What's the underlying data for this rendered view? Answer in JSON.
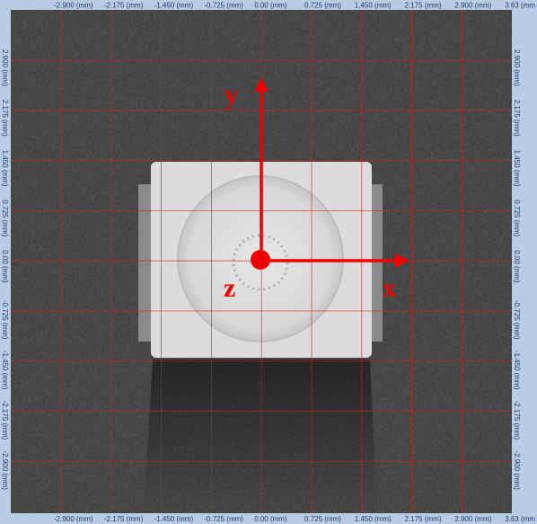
{
  "scale": {
    "x_labels": [
      "-2.900 (mm)",
      "-2.175 (mm)",
      "-1.450 (mm)",
      "-0.725 (mm)",
      "0.00 (mm)",
      "0.725 (mm)",
      "1.450 (mm)",
      "2.175 (mm)",
      "2.900 (mm)",
      "3.63 (mm"
    ],
    "y_labels": [
      "2.900 (mm)",
      "2.175 (mm)",
      "1.450 (mm)",
      "0.725 (mm)",
      "0.00 (mm)",
      "-0.725 (mm)",
      "-1.450 (mm)",
      "-2.175 (mm)",
      "-2.900 (mm)"
    ]
  },
  "axes": {
    "y": "y",
    "z": "z",
    "x": "x"
  }
}
